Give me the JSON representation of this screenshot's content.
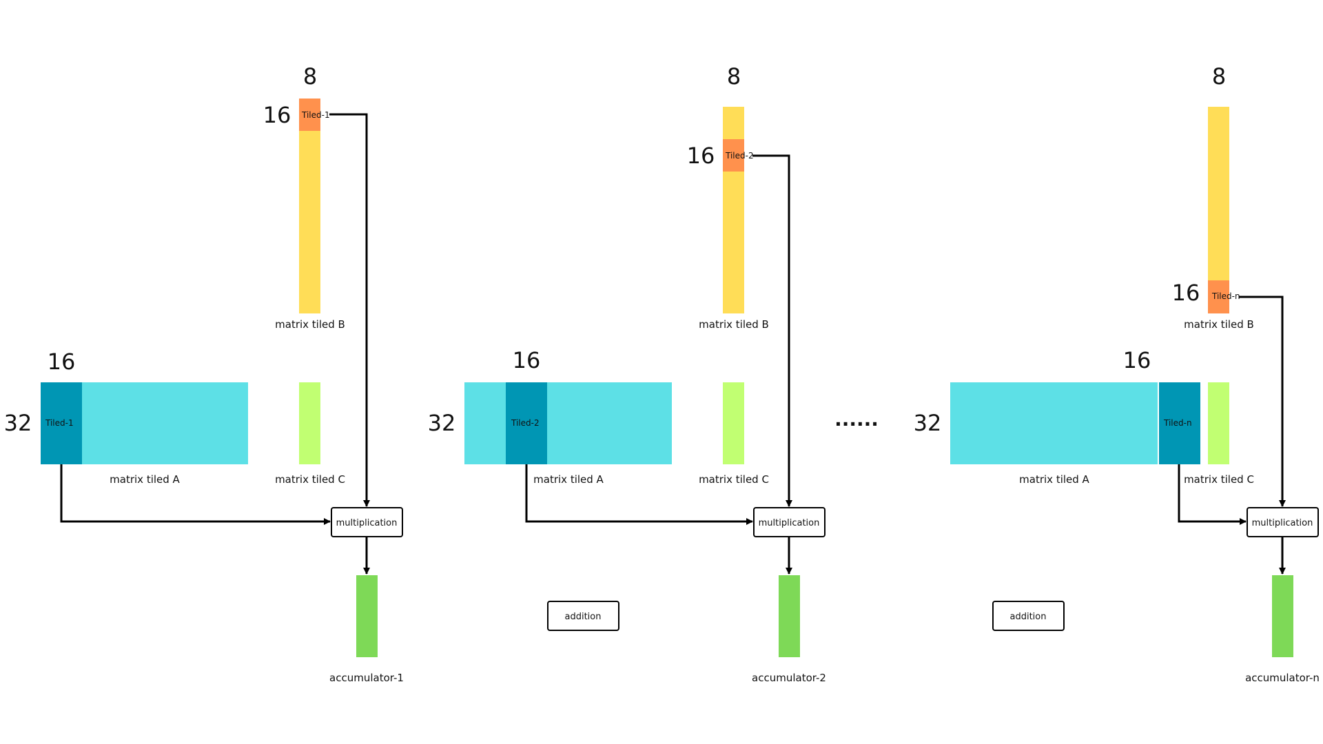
{
  "colors": {
    "matrix_a": "#5de0e6",
    "tile_a": "#0096b4",
    "matrix_b": "#ffdd57",
    "tile_b": "#ff914d",
    "matrix_c": "#c1ff72",
    "accumulator": "#7ed957"
  },
  "blocks": [
    {
      "b_cols": "8",
      "b_rows": "16",
      "b_tile": "Tiled-1",
      "b_label": "matrix tiled B",
      "a_cols": "16",
      "a_rows": "32",
      "a_tile": "Tiled-1",
      "a_label": "matrix tiled A",
      "c_label": "matrix tiled C",
      "mult": "multiplication",
      "acc": "accumulator-1"
    },
    {
      "b_cols": "8",
      "b_rows": "16",
      "b_tile": "Tiled-2",
      "b_label": "matrix tiled B",
      "a_cols": "16",
      "a_rows": "32",
      "a_tile": "Tiled-2",
      "a_label": "matrix tiled A",
      "c_label": "matrix tiled C",
      "mult": "multiplication",
      "acc": "accumulator-2"
    },
    {
      "b_cols": "8",
      "b_rows": "16",
      "b_tile": "Tiled-n",
      "b_label": "matrix tiled B",
      "a_cols": "16",
      "a_rows": "32",
      "a_tile": "Tiled-n",
      "a_label": "matrix tiled A",
      "c_label": "matrix tiled C",
      "mult": "multiplication",
      "acc": "accumulator-n"
    }
  ],
  "addition_boxes": [
    "addition",
    "addition"
  ],
  "ellipsis": "......"
}
